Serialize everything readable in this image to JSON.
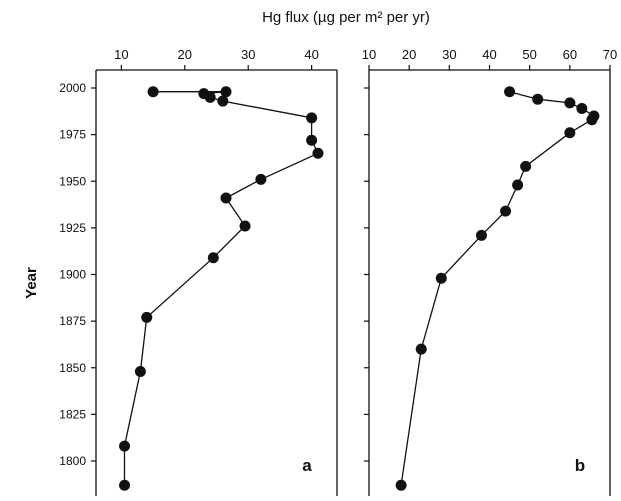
{
  "figure": {
    "top_xlabel": "Hg flux (µg per m² per yr)",
    "ylabel": "Year"
  },
  "chart_data": [
    {
      "type": "line",
      "panel_label": "a",
      "xlabel": "Hg flux (µg per m² per yr)",
      "ylabel": "Year",
      "xlim": [
        6,
        44
      ],
      "ylim": [
        1788,
        2000
      ],
      "x_ticks": [
        10,
        20,
        30,
        40
      ],
      "y_ticks": [
        2000,
        1975,
        1950,
        1925,
        1900,
        1875,
        1850,
        1825,
        1800
      ],
      "grid": false,
      "series": [
        {
          "x": [
            15,
            26.5,
            23,
            24,
            26,
            40,
            40,
            41,
            32,
            26.5,
            29.5,
            24.5,
            14,
            13,
            10.5,
            10.5
          ],
          "y": [
            1998,
            1998,
            1997,
            1995,
            1993,
            1984,
            1972,
            1965,
            1951,
            1941,
            1926,
            1909,
            1877,
            1848,
            1808,
            1787
          ]
        }
      ]
    },
    {
      "type": "line",
      "panel_label": "b",
      "xlabel": "Hg flux (µg per m² per yr)",
      "ylabel": "Year",
      "xlim": [
        10,
        70
      ],
      "ylim": [
        1788,
        2000
      ],
      "x_ticks": [
        10,
        20,
        30,
        40,
        50,
        60,
        70
      ],
      "y_ticks": [
        2000,
        1975,
        1950,
        1925,
        1900,
        1875,
        1850,
        1825,
        1800
      ],
      "grid": false,
      "series": [
        {
          "x": [
            45,
            52,
            60,
            63,
            66,
            65.5,
            60,
            49,
            47,
            44,
            38,
            28,
            23,
            18
          ],
          "y": [
            1998,
            1994,
            1992,
            1989,
            1985,
            1983,
            1976,
            1958,
            1948,
            1934,
            1921,
            1898,
            1860,
            1787
          ]
        }
      ]
    }
  ]
}
